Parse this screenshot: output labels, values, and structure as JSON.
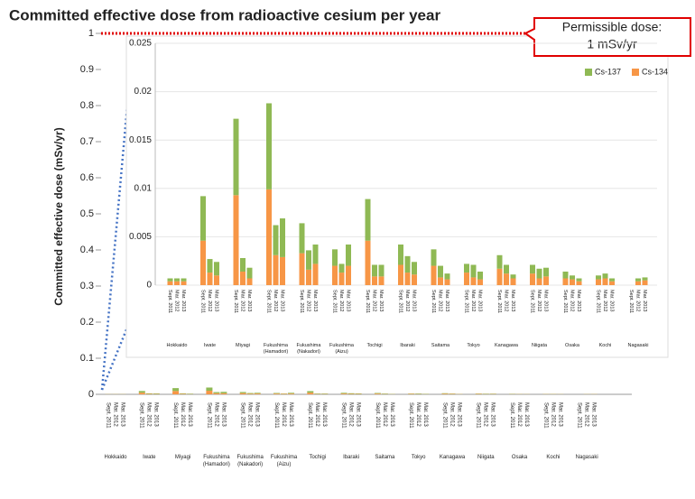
{
  "chart_data": [
    {
      "type": "bar",
      "title": "Committed effective dose from radioactive cesium per year",
      "ylabel": "Committed effective dose (mSv/yr)",
      "ylim": [
        0,
        1
      ],
      "yticks": [
        0,
        0.1,
        0.2,
        0.3,
        0.4,
        0.5,
        0.6,
        0.7,
        0.8,
        0.9,
        1
      ],
      "threshold": 1,
      "threshold_color": "#e00000",
      "annotation": [
        "Permissible dose:",
        "1 mSv/yr"
      ]
    },
    {
      "type": "bar",
      "stacked": true,
      "grid": true,
      "legend": "upper right",
      "ylim": [
        0,
        0.025
      ],
      "yticks": [
        0,
        0.005,
        0.01,
        0.015,
        0.02,
        0.025
      ],
      "groups": [
        "Hokkaido",
        "Iwate",
        "Miyagi",
        "Fukushima (Hamadori)",
        "Fukushima (Nakadori)",
        "Fukushima (Aizu)",
        "Tochigi",
        "Ibaraki",
        "Saitama",
        "Tokyo",
        "Kanagawa",
        "Niigata",
        "Osaka",
        "Kochi",
        "Nagasaki"
      ],
      "periods": [
        "Sept. 2011",
        "Mar. 2012",
        "Mar. 2013"
      ],
      "series": [
        {
          "name": "Cs-137",
          "color": "#8fb954",
          "values": [
            [
              0.0003,
              0.0003,
              0.0003
            ],
            [
              0.0046,
              0.0014,
              0.0014
            ],
            [
              0.0079,
              0.0014,
              0.0011
            ],
            [
              0.0089,
              0.0031,
              0.004
            ],
            [
              0.0031,
              0.002,
              0.002
            ],
            [
              0.0017,
              0.0009,
              0.0022
            ],
            [
              0.0043,
              0.0012,
              0.0012
            ],
            [
              0.0021,
              0.0017,
              0.0013
            ],
            [
              0.0017,
              0.0012,
              0.0006
            ],
            [
              0.0009,
              0.0013,
              0.0008
            ],
            [
              0.0014,
              0.0009,
              0.0004
            ],
            [
              0.0009,
              0.001,
              0.0009
            ],
            [
              0.0007,
              0.0004,
              0.0003
            ],
            [
              0.0004,
              0.0005,
              0.0003
            ],
            [
              null,
              0.0003,
              0.0003
            ]
          ]
        },
        {
          "name": "Cs-134",
          "color": "#f79646",
          "values": [
            [
              0.0004,
              0.0004,
              0.0004
            ],
            [
              0.0046,
              0.0013,
              0.001
            ],
            [
              0.0093,
              0.0014,
              0.0007
            ],
            [
              0.0099,
              0.0031,
              0.0029
            ],
            [
              0.0033,
              0.0016,
              0.0022
            ],
            [
              0.002,
              0.0013,
              0.002
            ],
            [
              0.0046,
              0.0009,
              0.0009
            ],
            [
              0.0021,
              0.0013,
              0.0011
            ],
            [
              0.002,
              0.0008,
              0.0006
            ],
            [
              0.0013,
              0.0008,
              0.0006
            ],
            [
              0.0017,
              0.0012,
              0.0007
            ],
            [
              0.0012,
              0.0007,
              0.0009
            ],
            [
              0.0007,
              0.0006,
              0.0004
            ],
            [
              0.0006,
              0.0007,
              0.0004
            ],
            [
              null,
              0.0004,
              0.0005
            ]
          ]
        }
      ]
    }
  ]
}
